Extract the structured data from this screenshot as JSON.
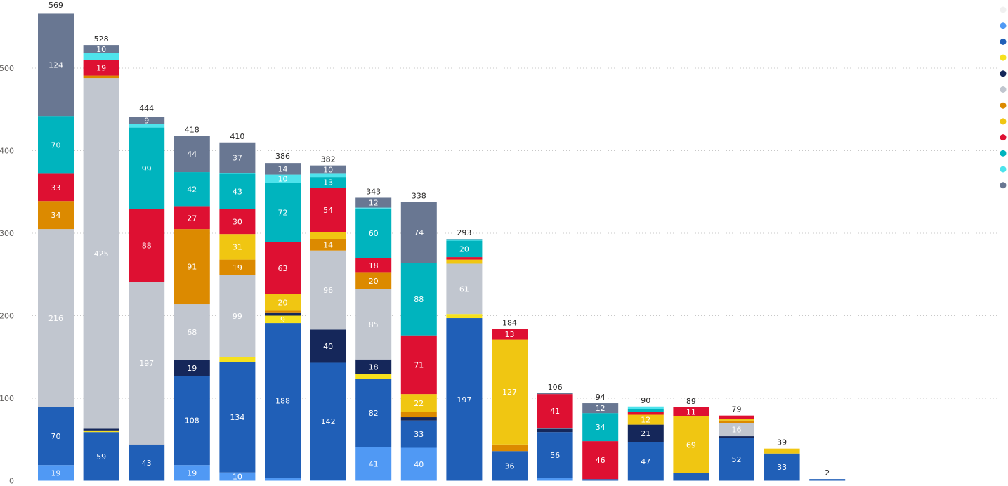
{
  "chart_data": {
    "type": "bar",
    "stacked": true,
    "title": "",
    "xlabel": "",
    "ylabel": "",
    "ylim": [
      0,
      570
    ],
    "y_ticks": [
      0,
      100,
      200,
      300,
      400,
      500
    ],
    "grid": "horizontal dotted",
    "legend_placement": "right (markers only, no text)",
    "series_colors": [
      "#f0f0f0",
      "#5099f4",
      "#205fb7",
      "#f6e11e",
      "#15275a",
      "#c1c6cf",
      "#dc8a00",
      "#f0c612",
      "#de1032",
      "#00b4be",
      "#4ee3ec",
      "#697792"
    ],
    "bars": [
      {
        "total": 569,
        "segments": [
          19,
          70,
          0,
          0,
          216,
          34,
          0,
          33,
          70,
          0,
          124
        ],
        "labels": [
          "19",
          "70",
          "",
          "",
          "216",
          "34",
          "",
          "33",
          "70",
          "",
          "124"
        ]
      },
      {
        "total": 528,
        "segments": [
          0,
          59,
          2,
          2,
          425,
          3,
          0,
          19,
          0,
          8,
          10
        ],
        "labels": [
          "",
          "59",
          "",
          "",
          "425",
          "",
          "",
          "19",
          "",
          "",
          "10"
        ]
      },
      {
        "total": 444,
        "segments": [
          0,
          43,
          0,
          1,
          197,
          0,
          0,
          88,
          99,
          4,
          9
        ],
        "labels": [
          "",
          "43",
          "",
          "",
          "197",
          "",
          "",
          "88",
          "99",
          "",
          "9"
        ]
      },
      {
        "total": 418,
        "segments": [
          19,
          108,
          0,
          19,
          68,
          91,
          0,
          27,
          42,
          0,
          44
        ],
        "labels": [
          "19",
          "108",
          "",
          "19",
          "68",
          "91",
          "",
          "27",
          "42",
          "",
          "44"
        ]
      },
      {
        "total": 410,
        "segments": [
          10,
          134,
          6,
          0,
          99,
          19,
          31,
          30,
          43,
          1,
          37
        ],
        "labels": [
          "10",
          "134",
          "",
          "",
          "99",
          "19",
          "31",
          "30",
          "43",
          "",
          "37"
        ]
      },
      {
        "total": 386,
        "segments": [
          3,
          188,
          9,
          4,
          0,
          2,
          20,
          63,
          72,
          10,
          14
        ],
        "labels": [
          "",
          "188",
          "9",
          "",
          "",
          "",
          "20",
          "63",
          "72",
          "10",
          "14"
        ]
      },
      {
        "total": 382,
        "segments": [
          1,
          142,
          0,
          40,
          96,
          14,
          8,
          54,
          13,
          4,
          10
        ],
        "labels": [
          "",
          "142",
          "",
          "40",
          "96",
          "14",
          "",
          "54",
          "13",
          "",
          "10"
        ]
      },
      {
        "total": 343,
        "segments": [
          41,
          82,
          6,
          18,
          85,
          20,
          0,
          18,
          60,
          1,
          12
        ],
        "labels": [
          "41",
          "82",
          "",
          "18",
          "85",
          "20",
          "",
          "18",
          "60",
          "",
          "12"
        ]
      },
      {
        "total": 338,
        "segments": [
          40,
          33,
          0,
          4,
          0,
          6,
          22,
          71,
          88,
          0,
          74
        ],
        "labels": [
          "40",
          "33",
          "",
          "",
          "",
          "",
          "22",
          "71",
          "88",
          "",
          "74"
        ]
      },
      {
        "total": 293,
        "segments": [
          0,
          197,
          5,
          0,
          61,
          0,
          5,
          3,
          20,
          1,
          1
        ],
        "labels": [
          "",
          "197",
          "",
          "",
          "61",
          "",
          "",
          "",
          "20",
          "",
          ""
        ]
      },
      {
        "total": 184,
        "segments": [
          0,
          36,
          0,
          0,
          0,
          8,
          127,
          13,
          0,
          0,
          0
        ],
        "labels": [
          "",
          "36",
          "",
          "",
          "",
          "",
          "127",
          "13",
          "",
          "",
          ""
        ]
      },
      {
        "total": 106,
        "segments": [
          3,
          56,
          0,
          4,
          1,
          0,
          0,
          41,
          0,
          0,
          1
        ],
        "labels": [
          "",
          "56",
          "",
          "",
          "",
          "",
          "",
          "41",
          "",
          "",
          ""
        ]
      },
      {
        "total": 94,
        "segments": [
          0,
          2,
          0,
          0,
          0,
          0,
          0,
          46,
          34,
          0,
          12
        ],
        "labels": [
          "",
          "",
          "",
          "",
          "",
          "",
          "",
          "46",
          "34",
          "",
          "12"
        ]
      },
      {
        "total": 90,
        "segments": [
          0,
          47,
          0,
          21,
          0,
          0,
          12,
          3,
          4,
          3,
          0
        ],
        "labels": [
          "",
          "47",
          "",
          "21",
          "",
          "",
          "12",
          "",
          "",
          "",
          ""
        ]
      },
      {
        "total": 89,
        "segments": [
          0,
          9,
          0,
          0,
          0,
          0,
          69,
          11,
          0,
          0,
          0
        ],
        "labels": [
          "",
          "",
          "",
          "",
          "",
          "",
          "69",
          "11",
          "",
          "",
          ""
        ]
      },
      {
        "total": 79,
        "segments": [
          0,
          52,
          0,
          2,
          16,
          3,
          2,
          4,
          0,
          0,
          0
        ],
        "labels": [
          "",
          "52",
          "",
          "",
          "16",
          "",
          "",
          "",
          "",
          "",
          ""
        ]
      },
      {
        "total": 39,
        "segments": [
          0,
          33,
          0,
          0,
          0,
          0,
          6,
          0,
          0,
          0,
          0
        ],
        "labels": [
          "",
          "33",
          "",
          "",
          "",
          "",
          "",
          "",
          "",
          "",
          ""
        ]
      },
      {
        "total": 2,
        "segments": [
          0,
          2,
          0,
          0,
          0,
          0,
          0,
          0,
          0,
          0,
          0
        ],
        "labels": [
          "",
          "",
          "",
          "",
          "",
          "",
          "",
          "",
          "",
          "",
          ""
        ]
      }
    ],
    "segment_color_order": [
      "#5099f4",
      "#205fb7",
      "#f6e11e",
      "#15275a",
      "#c1c6cf",
      "#dc8a00",
      "#f0c612",
      "#de1032",
      "#00b4be",
      "#4ee3ec",
      "#697792"
    ]
  }
}
